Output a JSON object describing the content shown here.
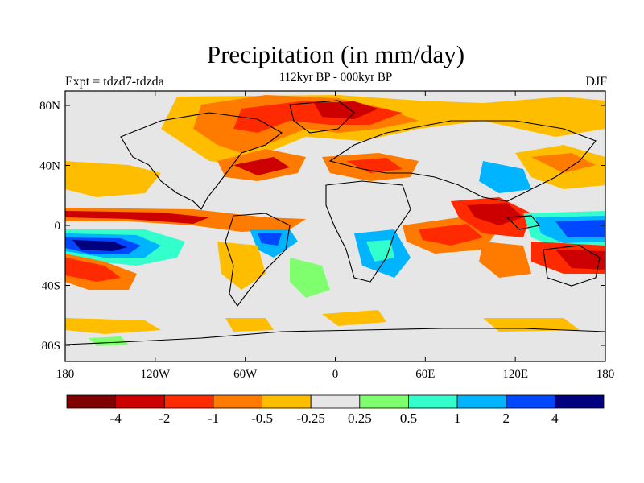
{
  "header": {
    "title": "Precipitation (in mm/day)",
    "subtitle": "112kyr BP - 000kyr BP",
    "left_label": "Expt = tdzd7-tdzda",
    "right_label": "DJF"
  },
  "axes": {
    "y_ticks": [
      "80N",
      "40N",
      "0",
      "40S",
      "80S"
    ],
    "x_ticks": [
      "180",
      "120W",
      "60W",
      "0",
      "60E",
      "120E",
      "180"
    ]
  },
  "colorbar": {
    "colors": [
      "#7f0000",
      "#cc0000",
      "#ff2a00",
      "#ff7b00",
      "#ffbd00",
      "#e6e6e6",
      "#80ff6e",
      "#33ffcc",
      "#00b4ff",
      "#0048ff",
      "#00007f"
    ],
    "labels": [
      "-4",
      "-2",
      "-1",
      "-0.5",
      "-0.25",
      "0.25",
      "0.5",
      "1",
      "2",
      "4"
    ]
  },
  "map": {
    "background_color": "#e6e6e6",
    "lon_range": [
      -180,
      180
    ],
    "lat_range": [
      -90,
      90
    ]
  }
}
